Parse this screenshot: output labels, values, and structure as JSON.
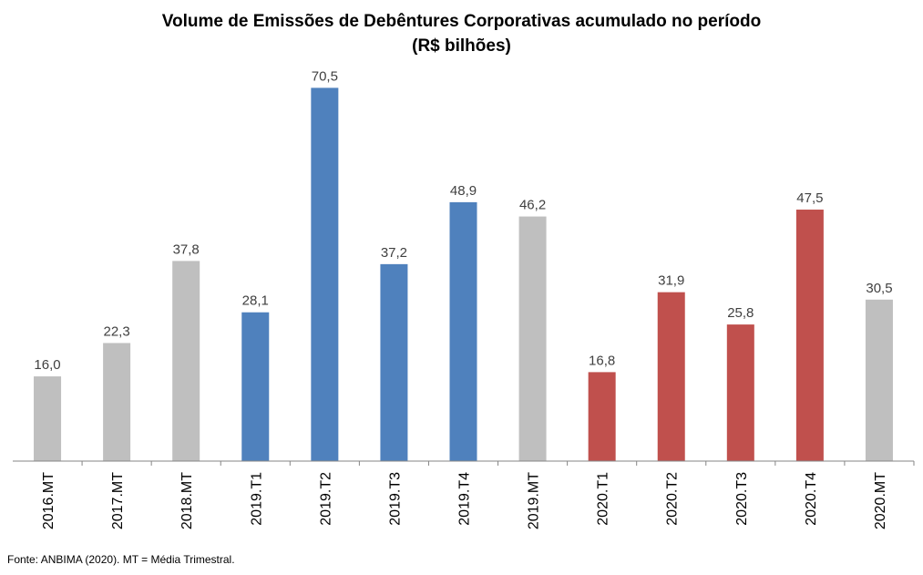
{
  "chart_data": {
    "type": "bar",
    "title_line1": "Volume de Emissões de Debêntures Corporativas acumulado no período",
    "title_line2": "(R$ bilhões)",
    "categories": [
      "2016.MT",
      "2017.MT",
      "2018.MT",
      "2019.T1",
      "2019.T2",
      "2019.T3",
      "2019.T4",
      "2019.MT",
      "2020.T1",
      "2020.T2",
      "2020.T3",
      "2020.T4",
      "2020.MT"
    ],
    "values": [
      16.0,
      22.3,
      37.8,
      28.1,
      70.5,
      37.2,
      48.9,
      46.2,
      16.8,
      31.9,
      25.8,
      47.5,
      30.5
    ],
    "value_labels": [
      "16,0",
      "22,3",
      "37,8",
      "28,1",
      "70,5",
      "37,2",
      "48,9",
      "46,2",
      "16,8",
      "31,9",
      "25,8",
      "47,5",
      "30,5"
    ],
    "bar_colors": [
      "#bfbfbf",
      "#bfbfbf",
      "#bfbfbf",
      "#4f81bd",
      "#4f81bd",
      "#4f81bd",
      "#4f81bd",
      "#bfbfbf",
      "#c0504d",
      "#c0504d",
      "#c0504d",
      "#c0504d",
      "#bfbfbf"
    ],
    "ylim": [
      0,
      72
    ],
    "grid": false,
    "legend": "none"
  },
  "source_note": "Fonte: ANBIMA (2020). MT = Média Trimestral."
}
